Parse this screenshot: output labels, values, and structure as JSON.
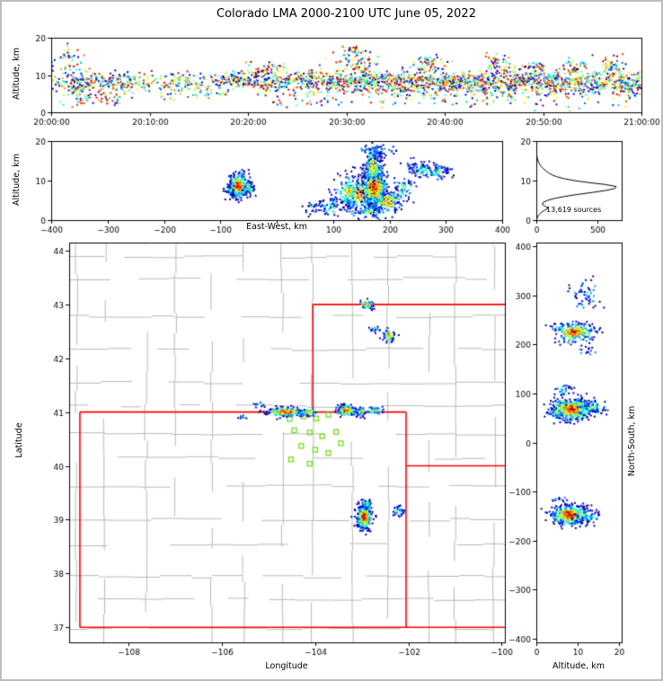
{
  "title": "Colorado LMA 2000-2100 UTC June 05, 2022",
  "colors": {
    "axis": "#000000",
    "state_border": "#ff0000",
    "county": "#b8b8b8",
    "station": "#6fe016",
    "histogram_line": "#000000",
    "background": "#ffffff",
    "figure_border": "#bdbdbd"
  },
  "chart_data": [
    {
      "id": "time_altitude",
      "type": "scatter",
      "xlabel": "",
      "ylabel": "Altitude, km",
      "xlim": [
        0,
        3600
      ],
      "ylim": [
        0,
        20
      ],
      "xticks": {
        "values": [
          0,
          600,
          1200,
          1800,
          2400,
          3000,
          3600
        ],
        "labels": [
          "20:00:00",
          "20:10:00",
          "20:20:00",
          "20:30:00",
          "20:40:00",
          "20:50:00",
          "21:00:00"
        ]
      },
      "yticks": {
        "values": [
          0,
          10,
          20
        ],
        "labels": [
          "0",
          "10",
          "20"
        ]
      },
      "seed": 11,
      "point_size": 2,
      "clusters": [
        {
          "shape": "blob",
          "cx": 80,
          "cy": 9,
          "sx": 60,
          "sy": 3.2,
          "n": 90
        },
        {
          "shape": "blob",
          "cx": 100,
          "cy": 15,
          "sx": 40,
          "sy": 1.2,
          "n": 18
        },
        {
          "shape": "band",
          "x0": 120,
          "x1": 500,
          "cy": 7.8,
          "sy": 1.5,
          "n": 200
        },
        {
          "shape": "band",
          "x0": 150,
          "x1": 420,
          "cy": 3.5,
          "sy": 1.1,
          "n": 45
        },
        {
          "shape": "band",
          "x0": 500,
          "x1": 1100,
          "cy": 8.2,
          "sy": 1.3,
          "n": 170
        },
        {
          "shape": "band",
          "x0": 600,
          "x1": 1100,
          "cy": 5,
          "sy": 0.8,
          "n": 40
        },
        {
          "shape": "band",
          "x0": 1100,
          "x1": 1650,
          "cy": 8.4,
          "sy": 1.5,
          "n": 330
        },
        {
          "shape": "blob",
          "cx": 1300,
          "cy": 12,
          "sx": 60,
          "sy": 0.9,
          "n": 35
        },
        {
          "shape": "band",
          "x0": 1650,
          "x1": 2000,
          "cy": 8,
          "sy": 1.4,
          "n": 260
        },
        {
          "shape": "blob",
          "cx": 1850,
          "cy": 13.5,
          "sx": 70,
          "sy": 2.2,
          "n": 90
        },
        {
          "shape": "blob",
          "cx": 1870,
          "cy": 17,
          "sx": 40,
          "sy": 0.8,
          "n": 18
        },
        {
          "shape": "band",
          "x0": 2000,
          "x1": 3600,
          "cy": 8.3,
          "sy": 1.3,
          "n": 950
        },
        {
          "shape": "band",
          "x0": 2000,
          "x1": 3600,
          "cy": 5.8,
          "sy": 1.0,
          "n": 230
        },
        {
          "shape": "band",
          "x0": 1300,
          "x1": 3600,
          "cy": 3.2,
          "sy": 1.0,
          "n": 110
        },
        {
          "shape": "blob",
          "cx": 2300,
          "cy": 12.5,
          "sx": 50,
          "sy": 1.3,
          "n": 60
        },
        {
          "shape": "blob",
          "cx": 2720,
          "cy": 12.8,
          "sx": 40,
          "sy": 1.5,
          "n": 55
        },
        {
          "shape": "blob",
          "cx": 2950,
          "cy": 11.8,
          "sx": 35,
          "sy": 1.0,
          "n": 40
        },
        {
          "shape": "blob",
          "cx": 3200,
          "cy": 12,
          "sx": 45,
          "sy": 1.0,
          "n": 40
        },
        {
          "shape": "blob",
          "cx": 3420,
          "cy": 12.3,
          "sx": 40,
          "sy": 1.2,
          "n": 45
        }
      ]
    },
    {
      "id": "ew_altitude",
      "type": "scatter",
      "xlabel": "East-West, km",
      "ylabel": "Altitude, km",
      "xlim": [
        -400,
        400
      ],
      "ylim": [
        0,
        20
      ],
      "xticks": {
        "values": [
          -400,
          -300,
          -200,
          -100,
          0,
          100,
          200,
          300,
          400
        ],
        "labels": [
          "−400",
          "−300",
          "−200",
          "−100",
          "",
          "100",
          "200",
          "300",
          "400"
        ]
      },
      "yticks": {
        "values": [
          0,
          10,
          20
        ],
        "labels": [
          "0",
          "10",
          "20"
        ]
      },
      "seed": 23,
      "point_size": 2,
      "clusters": [
        {
          "shape": "blob",
          "cx": -68,
          "cy": 8.6,
          "sx": 9,
          "sy": 1.5,
          "n": 300,
          "hot": 1
        },
        {
          "shape": "blob",
          "cx": -50,
          "cy": 8.2,
          "sx": 4,
          "sy": 0.9,
          "n": 60,
          "hot": 0.7
        },
        {
          "shape": "blob",
          "cx": -82,
          "cy": 7.6,
          "sx": 3,
          "sy": 0.8,
          "n": 35,
          "hot": 0.5
        },
        {
          "shape": "blob",
          "cx": 150,
          "cy": 6.5,
          "sx": 22,
          "sy": 2.0,
          "n": 320,
          "hot": 0.85
        },
        {
          "shape": "blob",
          "cx": 173,
          "cy": 8.2,
          "sx": 10,
          "sy": 2.6,
          "n": 650,
          "hot": 1
        },
        {
          "shape": "blob",
          "cx": 171,
          "cy": 13.5,
          "sx": 7,
          "sy": 2.0,
          "n": 200,
          "hot": 0.75
        },
        {
          "shape": "blob",
          "cx": 177,
          "cy": 16.8,
          "sx": 6,
          "sy": 1.1,
          "n": 45,
          "hot": 0.35
        },
        {
          "shape": "blob",
          "cx": 196,
          "cy": 4.6,
          "sx": 13,
          "sy": 1.5,
          "n": 140,
          "hot": 0.8
        },
        {
          "shape": "blob",
          "cx": 128,
          "cy": 7.2,
          "sx": 7,
          "sy": 2.2,
          "n": 110,
          "hot": 0.7
        },
        {
          "shape": "blob",
          "cx": 96,
          "cy": 3.4,
          "sx": 11,
          "sy": 1.2,
          "n": 55,
          "hot": 0.4
        },
        {
          "shape": "blob",
          "cx": 65,
          "cy": 3.0,
          "sx": 8,
          "sy": 1.0,
          "n": 25,
          "hot": 0.3
        },
        {
          "shape": "blob",
          "cx": 225,
          "cy": 7.5,
          "sx": 9,
          "sy": 2.0,
          "n": 55,
          "hot": 0.5
        },
        {
          "shape": "blob",
          "cx": 262,
          "cy": 12.6,
          "sx": 13,
          "sy": 0.9,
          "n": 65,
          "hot": 0.5
        },
        {
          "shape": "blob",
          "cx": 287,
          "cy": 12.1,
          "sx": 6,
          "sy": 0.9,
          "n": 45,
          "hot": 0.6
        },
        {
          "shape": "blob",
          "cx": 240,
          "cy": 13.4,
          "sx": 7,
          "sy": 0.9,
          "n": 25,
          "hot": 0.3
        },
        {
          "shape": "blob",
          "cx": 303,
          "cy": 12.6,
          "sx": 4,
          "sy": 0.8,
          "n": 14,
          "hot": 0.25
        },
        {
          "shape": "band",
          "x0": 150,
          "x1": 215,
          "cy": 17.8,
          "sy": 0.8,
          "n": 25,
          "hot": 0.25
        },
        {
          "shape": "blob",
          "cx": 160,
          "cy": 2.5,
          "sx": 18,
          "sy": 0.9,
          "n": 60,
          "hot": 0.5
        }
      ]
    },
    {
      "id": "altitude_histogram",
      "type": "line",
      "annotation": "13,619 sources",
      "xlabel": "",
      "ylabel": "",
      "xlim": [
        0,
        700
      ],
      "ylim": [
        0,
        20
      ],
      "xticks": {
        "values": [
          0,
          500
        ],
        "labels": [
          "0",
          "500"
        ]
      },
      "yticks": {
        "values": [
          0,
          10,
          20
        ],
        "labels": [
          "0",
          "10",
          "20"
        ]
      },
      "profile": [
        [
          0,
          0
        ],
        [
          0.5,
          6
        ],
        [
          1,
          14
        ],
        [
          1.5,
          26
        ],
        [
          2,
          42
        ],
        [
          2.5,
          68
        ],
        [
          3,
          96
        ],
        [
          3.5,
          72
        ],
        [
          4,
          48
        ],
        [
          4.5,
          56
        ],
        [
          5,
          92
        ],
        [
          5.5,
          150
        ],
        [
          6,
          235
        ],
        [
          6.5,
          340
        ],
        [
          7,
          460
        ],
        [
          7.5,
          570
        ],
        [
          8,
          645
        ],
        [
          8.5,
          655
        ],
        [
          9,
          570
        ],
        [
          9.5,
          430
        ],
        [
          10,
          310
        ],
        [
          10.5,
          225
        ],
        [
          11,
          165
        ],
        [
          11.5,
          125
        ],
        [
          12,
          98
        ],
        [
          12.5,
          76
        ],
        [
          13,
          58
        ],
        [
          13.5,
          42
        ],
        [
          14,
          30
        ],
        [
          14.5,
          21
        ],
        [
          15,
          14
        ],
        [
          15.5,
          9
        ],
        [
          16,
          6
        ],
        [
          16.5,
          4
        ],
        [
          17,
          3
        ],
        [
          17.5,
          2
        ],
        [
          18,
          1
        ],
        [
          18.5,
          1
        ],
        [
          19,
          0
        ],
        [
          20,
          0
        ]
      ]
    },
    {
      "id": "map",
      "type": "scatter",
      "xlabel": "Longitude",
      "ylabel": "Latitude",
      "xlim": [
        -109.28,
        -99.93
      ],
      "ylim": [
        36.72,
        44.15
      ],
      "xticks": {
        "values": [
          -108,
          -106,
          -104,
          -102,
          -100
        ],
        "labels": [
          "−108",
          "−106",
          "−104",
          "−102",
          "−100"
        ]
      },
      "yticks": {
        "values": [
          37,
          38,
          39,
          40,
          41,
          42,
          43,
          44
        ],
        "labels": [
          "37",
          "38",
          "39",
          "40",
          "41",
          "42",
          "43",
          "44"
        ]
      },
      "seed": 37,
      "point_size": 2,
      "county_grid": {
        "seed": 7
      },
      "state_lines": [
        [
          [
            -109.05,
            37.0
          ],
          [
            -109.05,
            41.0
          ]
        ],
        [
          [
            -109.05,
            41.0
          ],
          [
            -102.05,
            41.0
          ]
        ],
        [
          [
            -102.05,
            41.0
          ],
          [
            -102.05,
            37.0
          ]
        ],
        [
          [
            -109.05,
            37.0
          ],
          [
            -99.93,
            37.0
          ]
        ],
        [
          [
            -104.05,
            41.0
          ],
          [
            -104.05,
            43.0
          ]
        ],
        [
          [
            -104.05,
            43.0
          ],
          [
            -99.93,
            43.0
          ]
        ],
        [
          [
            -102.05,
            40.0
          ],
          [
            -99.93,
            40.0
          ]
        ]
      ],
      "stations": [
        [
          -104.55,
          40.87
        ],
        [
          -104.25,
          40.92
        ],
        [
          -103.98,
          40.88
        ],
        [
          -103.72,
          40.95
        ],
        [
          -104.45,
          40.66
        ],
        [
          -104.12,
          40.62
        ],
        [
          -103.85,
          40.55
        ],
        [
          -103.55,
          40.63
        ],
        [
          -104.3,
          40.37
        ],
        [
          -104.0,
          40.3
        ],
        [
          -103.72,
          40.24
        ],
        [
          -104.52,
          40.12
        ],
        [
          -104.12,
          40.04
        ],
        [
          -103.45,
          40.42
        ]
      ],
      "clusters": [
        {
          "shape": "blob",
          "cx": -104.62,
          "cy": 41.0,
          "sx": 0.2,
          "sy": 0.04,
          "n": 240,
          "hot": 1
        },
        {
          "shape": "blob",
          "cx": -104.15,
          "cy": 41.0,
          "sx": 0.1,
          "sy": 0.035,
          "n": 70,
          "hot": 0.8
        },
        {
          "shape": "blob",
          "cx": -103.33,
          "cy": 41.03,
          "sx": 0.1,
          "sy": 0.05,
          "n": 190,
          "hot": 1
        },
        {
          "shape": "blob",
          "cx": -103.02,
          "cy": 41.0,
          "sx": 0.06,
          "sy": 0.04,
          "n": 55,
          "hot": 0.7
        },
        {
          "shape": "blob",
          "cx": -102.72,
          "cy": 41.02,
          "sx": 0.1,
          "sy": 0.035,
          "n": 40,
          "hot": 0.55
        },
        {
          "shape": "blob",
          "cx": -105.2,
          "cy": 41.14,
          "sx": 0.06,
          "sy": 0.03,
          "n": 12,
          "hot": 0.3
        },
        {
          "shape": "blob",
          "cx": -105.55,
          "cy": 40.9,
          "sx": 0.04,
          "sy": 0.025,
          "n": 8,
          "hot": 0.3
        },
        {
          "shape": "blob",
          "cx": -102.9,
          "cy": 43.0,
          "sx": 0.07,
          "sy": 0.04,
          "n": 55,
          "hot": 0.85
        },
        {
          "shape": "blob",
          "cx": -102.42,
          "cy": 42.42,
          "sx": 0.07,
          "sy": 0.05,
          "n": 65,
          "hot": 0.85
        },
        {
          "shape": "blob",
          "cx": -102.73,
          "cy": 42.55,
          "sx": 0.05,
          "sy": 0.035,
          "n": 22,
          "hot": 0.5
        },
        {
          "shape": "blob",
          "cx": -102.95,
          "cy": 39.05,
          "sx": 0.075,
          "sy": 0.12,
          "n": 420,
          "hot": 1
        },
        {
          "shape": "blob",
          "cx": -102.88,
          "cy": 39.3,
          "sx": 0.05,
          "sy": 0.05,
          "n": 45,
          "hot": 0.6
        },
        {
          "shape": "blob",
          "cx": -102.22,
          "cy": 39.17,
          "sx": 0.06,
          "sy": 0.045,
          "n": 35,
          "hot": 0.5
        }
      ]
    },
    {
      "id": "ns_altitude",
      "type": "scatter",
      "xlabel": "Altitude, km",
      "ylabel": "North-South, km",
      "xlim": [
        0,
        20.6
      ],
      "ylim": [
        -408,
        408
      ],
      "xticks": {
        "values": [
          0,
          10,
          20
        ],
        "labels": [
          "0",
          "10",
          "20"
        ]
      },
      "yticks": {
        "values": [
          -400,
          -300,
          -200,
          -100,
          0,
          100,
          200,
          300,
          400
        ],
        "labels": [
          "−400",
          "−300",
          "−200",
          "−100",
          "0",
          "100",
          "200",
          "300",
          "400"
        ]
      },
      "seed": 51,
      "point_size": 2,
      "clusters": [
        {
          "shape": "blob",
          "cx": 8.5,
          "cy": 68,
          "sx": 2.4,
          "sy": 11,
          "n": 480,
          "hot": 1
        },
        {
          "shape": "blob",
          "cx": 13.5,
          "cy": 72,
          "sx": 1.8,
          "sy": 8,
          "n": 70,
          "hot": 0.5
        },
        {
          "shape": "blob",
          "cx": 5,
          "cy": 60,
          "sx": 1.2,
          "sy": 8,
          "n": 40,
          "hot": 0.5
        },
        {
          "shape": "blob",
          "cx": 9,
          "cy": 225,
          "sx": 2.6,
          "sy": 10,
          "n": 260,
          "hot": 0.9
        },
        {
          "shape": "blob",
          "cx": 11.5,
          "cy": 300,
          "sx": 2.2,
          "sy": 14,
          "n": 55,
          "hot": 0.28
        },
        {
          "shape": "blob",
          "cx": 12,
          "cy": 186,
          "sx": 1.4,
          "sy": 4,
          "n": 14,
          "hot": 0.3
        },
        {
          "shape": "blob",
          "cx": 8,
          "cy": -148,
          "sx": 2.2,
          "sy": 10,
          "n": 430,
          "hot": 1
        },
        {
          "shape": "blob",
          "cx": 12.5,
          "cy": -152,
          "sx": 1.6,
          "sy": 6,
          "n": 55,
          "hot": 0.5
        },
        {
          "shape": "blob",
          "cx": 6.5,
          "cy": 108,
          "sx": 1.3,
          "sy": 5,
          "n": 25,
          "hot": 0.35
        },
        {
          "shape": "blob",
          "cx": 5.5,
          "cy": -118,
          "sx": 1.0,
          "sy": 4,
          "n": 12,
          "hot": 0.3
        }
      ]
    }
  ]
}
